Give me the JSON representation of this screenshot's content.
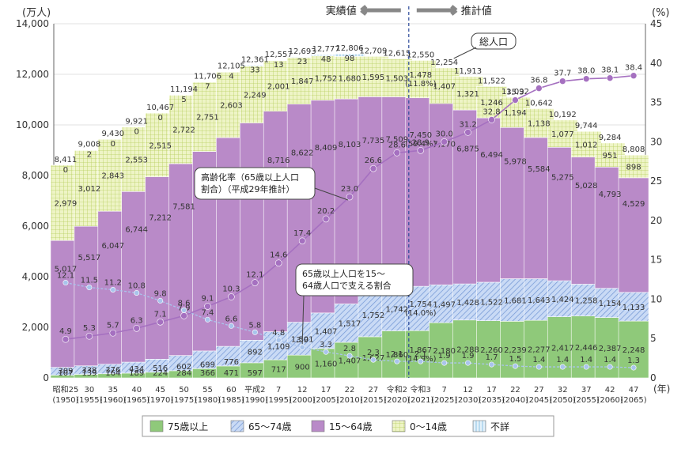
{
  "chart_data": {
    "type": "bar",
    "stacked": true,
    "grid": true,
    "legend_position": "bottom",
    "left_unit": "(万人)",
    "right_unit": "(%)",
    "x_unit": "(年)",
    "ylim_left": [
      0,
      14000
    ],
    "ylim_right": [
      0,
      45
    ],
    "left_ticks": [
      "0",
      "2,000",
      "4,000",
      "6,000",
      "8,000",
      "10,000",
      "12,000",
      "14,000"
    ],
    "right_ticks": [
      "0",
      "5",
      "10",
      "15",
      "20",
      "25",
      "30",
      "35",
      "40",
      "45"
    ],
    "categories": [
      "昭和25\n(1950)",
      "30\n(1955)",
      "35\n(1960)",
      "40\n(1965)",
      "45\n(1970)",
      "50\n(1975)",
      "55\n(1980)",
      "60\n(1985)",
      "平成2\n(1990)",
      "7\n(1995)",
      "12\n(2000)",
      "17\n(2005)",
      "22\n(2010)",
      "27\n(2015)",
      "令和2\n(2020)",
      "令和3\n(2021)",
      "7\n(2025)",
      "12\n(2030)",
      "17\n(2035)",
      "22\n(2040)",
      "27\n(2045)",
      "32\n(2050)",
      "37\n(2055)",
      "42\n(2060)",
      "47\n(2065)"
    ],
    "actual_label": "実績値",
    "projected_label": "推計値",
    "divider_after_index": 14,
    "series": [
      {
        "name": "75歳以上",
        "color": "#8fc97a",
        "values": [
          107,
          139,
          164,
          189,
          224,
          284,
          366,
          471,
          597,
          717,
          900,
          1160,
          1407,
          1627,
          1860,
          1867,
          2180,
          2288,
          2260,
          2239,
          2277,
          2417,
          2446,
          2387,
          2248
        ]
      },
      {
        "name": "65～74歳",
        "color": "#a9c4ec",
        "values": [
          309,
          338,
          376,
          434,
          516,
          602,
          699,
          776,
          892,
          1109,
          1301,
          1407,
          1517,
          1752,
          1742,
          1754,
          1497,
          1428,
          1522,
          1681,
          1643,
          1424,
          1258,
          1154,
          1133
        ]
      },
      {
        "name": "15～64歳",
        "color": "#b98ac8",
        "values": [
          5017,
          5517,
          6047,
          6744,
          7212,
          7581,
          7883,
          8251,
          8590,
          8716,
          8622,
          8409,
          8103,
          7735,
          7509,
          7450,
          7170,
          6875,
          6494,
          5978,
          5584,
          5275,
          5028,
          4793,
          4529
        ]
      },
      {
        "name": "0～14歳",
        "color": "#e6efb4",
        "values": [
          2979,
          3012,
          2843,
          2553,
          2515,
          2722,
          2751,
          2603,
          2249,
          2001,
          1847,
          1752,
          1680,
          1595,
          1503,
          1478,
          1407,
          1321,
          1246,
          1194,
          1138,
          1077,
          1012,
          951,
          898
        ]
      },
      {
        "name": "不詳",
        "color": "#cfe6f4",
        "values": [
          0,
          2,
          0,
          0,
          0,
          5,
          7,
          4,
          33,
          13,
          23,
          48,
          98,
          0,
          0,
          0,
          0,
          0,
          0,
          0,
          0,
          0,
          0,
          0,
          0
        ]
      }
    ],
    "segment_labels": [
      [
        "107",
        "139",
        "164",
        "189",
        "224",
        "284",
        "366",
        "471",
        "597",
        "717",
        "900",
        "1,160",
        "1,407",
        "1,627",
        "1,860",
        "1,867\n(14.9%)",
        "2,180",
        "2,288",
        "2,260",
        "2,239",
        "2,277",
        "2,417",
        "2,446",
        "2,387",
        "2,248"
      ],
      [
        "309",
        "338",
        "376",
        "434",
        "516",
        "602",
        "699",
        "776",
        "892",
        "1,109",
        "1,301",
        "1,407",
        "1,517",
        "1,752",
        "1,742",
        "1,754\n(14.0%)",
        "1,497",
        "1,428",
        "1,522",
        "1,681",
        "1,643",
        "1,424",
        "1,258",
        "1,154",
        "1,133"
      ],
      [
        "5,017",
        "5,517",
        "6,047",
        "6,744",
        "7,212",
        "7,581",
        "7,883",
        "8,251",
        "8,590",
        "8,716",
        "8,622",
        "8,409",
        "8,103",
        "7,735",
        "7,509",
        "7,450\n(59.4%)",
        "7,170",
        "6,875",
        "6,494",
        "5,978",
        "5,584",
        "5,275",
        "5,028",
        "4,793",
        "4,529"
      ],
      [
        "2,979",
        "3,012",
        "2,843",
        "2,553",
        "2,515",
        "2,722",
        "2,751",
        "2,603",
        "2,249",
        "2,001",
        "1,847",
        "1,752",
        "1,680",
        "1,595",
        "1,503",
        "1,478\n(11.8%)",
        "1,407",
        "1,321",
        "1,246",
        "1,194",
        "1,138",
        "1,077",
        "1,012",
        "951",
        "898"
      ],
      [
        "0",
        "2",
        "0",
        "0",
        "0",
        "5",
        "7",
        "4",
        "33",
        "13",
        "23",
        "48",
        "98",
        "",
        "",
        "",
        "",
        "",
        "",
        "",
        "",
        "",
        "",
        "",
        ""
      ]
    ],
    "totals": [
      8411,
      9008,
      9430,
      9921,
      10467,
      11194,
      11706,
      12105,
      12361,
      12557,
      12693,
      12777,
      12806,
      12709,
      12615,
      12550,
      12254,
      11913,
      11522,
      11092,
      10642,
      10192,
      9744,
      9284,
      8808
    ],
    "total_labels": [
      "8,411",
      "9,008",
      "9,430",
      "9,921",
      "10,467",
      "11,194",
      "11,706",
      "12,105",
      "12,361",
      "12,557",
      "12,693",
      "12,777",
      "12,806",
      "12,709",
      "12,615",
      "12,550",
      "12,254",
      "11,913",
      "11,522",
      "11,092",
      "10,642",
      "10,192",
      "9,744",
      "9,284",
      "8,808"
    ],
    "lines": [
      {
        "name": "高齢化率（65歳以上人口割合）（平成29年推計）",
        "color": "#a570c0",
        "axis": "right",
        "values": [
          4.9,
          5.3,
          5.7,
          6.3,
          7.1,
          7.9,
          9.1,
          10.3,
          12.1,
          14.6,
          17.4,
          20.2,
          23.0,
          26.6,
          28.6,
          28.9,
          30.0,
          31.2,
          32.8,
          35.3,
          36.8,
          37.7,
          38.0,
          38.1,
          38.4
        ],
        "labels": [
          "4.9",
          "5.3",
          "5.7",
          "6.3",
          "7.1",
          "7.9",
          "9.1",
          "10.3",
          "12.1",
          "14.6",
          "17.4",
          "20.2",
          "23.0",
          "26.6",
          "28.6",
          "28.9",
          "30.0",
          "31.2",
          "32.8",
          "35.3",
          "36.8",
          "37.7",
          "38.0",
          "38.1",
          "38.4"
        ]
      },
      {
        "name": "65歳以上人口を15～64歳人口で支える割合",
        "color": "#a9c4ec",
        "axis": "right",
        "values": [
          12.1,
          11.5,
          11.2,
          10.8,
          9.8,
          8.6,
          7.4,
          6.6,
          5.8,
          4.8,
          3.9,
          3.3,
          2.8,
          2.3,
          2.1,
          2.1,
          1.9,
          1.9,
          1.7,
          1.5,
          1.4,
          1.4,
          1.4,
          1.4,
          1.3
        ],
        "labels": [
          "12.1",
          "11.5",
          "11.2",
          "10.8",
          "9.8",
          "8.6",
          "7.4",
          "6.6",
          "5.8",
          "4.8",
          "3.9",
          "3.3",
          "2.8",
          "2.3",
          "2.1",
          "2.1",
          "1.9",
          "1.9",
          "1.7",
          "1.5",
          "1.4",
          "1.4",
          "1.4",
          "1.4",
          "1.3"
        ]
      }
    ],
    "callouts": {
      "total": "総人口",
      "aging_rate": "高齢化率（65歳以上人口\n割合）（平成29年推計）",
      "support": "65歳以上人口を15～\n64歳人口で支える割合"
    }
  }
}
